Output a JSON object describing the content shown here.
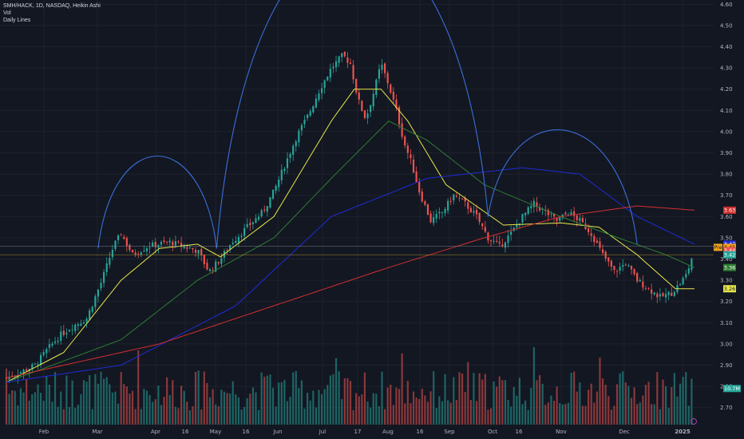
{
  "legend": {
    "line1": "SMH/HACK, 1D, NASDAQ, Heikin Ashi",
    "line2": "Vol",
    "line3": "Daily Lines"
  },
  "chart_data": {
    "type": "candlestick",
    "ylim": [
      2.62,
      4.62
    ],
    "y_ticks": [
      4.6,
      4.5,
      4.4,
      4.3,
      4.2,
      4.1,
      4.0,
      3.9,
      3.8,
      3.7,
      3.6,
      3.5,
      3.4,
      3.3,
      3.2,
      3.1,
      3.0,
      2.9,
      2.8,
      2.7
    ],
    "x_ticks": [
      "Feb",
      "Mar",
      "Apr",
      "16",
      "May",
      "16",
      "Jun",
      "Jul",
      "17",
      "Aug",
      "16",
      "Sep",
      "Oct",
      "16",
      "Nov",
      "Dec",
      "2025"
    ],
    "bar_count": 240,
    "close_path": [
      [
        0,
        2.84
      ],
      [
        8,
        2.87
      ],
      [
        15,
        2.9
      ],
      [
        22,
        2.98
      ],
      [
        28,
        3.04
      ],
      [
        34,
        3.08
      ],
      [
        42,
        3.12
      ],
      [
        50,
        3.3
      ],
      [
        56,
        3.46
      ],
      [
        60,
        3.52
      ],
      [
        66,
        3.42
      ],
      [
        74,
        3.46
      ],
      [
        80,
        3.47
      ],
      [
        86,
        3.48
      ],
      [
        92,
        3.46
      ],
      [
        100,
        3.44
      ],
      [
        106,
        3.34
      ],
      [
        112,
        3.4
      ],
      [
        118,
        3.48
      ],
      [
        126,
        3.55
      ],
      [
        134,
        3.62
      ],
      [
        140,
        3.72
      ],
      [
        146,
        3.85
      ],
      [
        152,
        3.98
      ],
      [
        158,
        4.08
      ],
      [
        164,
        4.2
      ],
      [
        170,
        4.3
      ],
      [
        176,
        4.36
      ],
      [
        180,
        4.32
      ],
      [
        184,
        4.15
      ],
      [
        188,
        4.06
      ],
      [
        192,
        4.18
      ],
      [
        196,
        4.32
      ],
      [
        200,
        4.22
      ],
      [
        204,
        4.1
      ],
      [
        208,
        3.95
      ],
      [
        212,
        3.85
      ],
      [
        216,
        3.72
      ],
      [
        222,
        3.58
      ],
      [
        228,
        3.62
      ],
      [
        234,
        3.7
      ],
      [
        240,
        3.66
      ],
      [
        246,
        3.6
      ],
      [
        252,
        3.5
      ],
      [
        258,
        3.46
      ],
      [
        264,
        3.52
      ],
      [
        270,
        3.6
      ],
      [
        276,
        3.66
      ],
      [
        282,
        3.62
      ],
      [
        288,
        3.58
      ],
      [
        294,
        3.62
      ],
      [
        300,
        3.58
      ],
      [
        306,
        3.52
      ],
      [
        312,
        3.42
      ],
      [
        318,
        3.34
      ],
      [
        324,
        3.38
      ],
      [
        330,
        3.3
      ],
      [
        336,
        3.26
      ],
      [
        342,
        3.22
      ],
      [
        348,
        3.24
      ],
      [
        352,
        3.28
      ],
      [
        356,
        3.33
      ],
      [
        360,
        3.45
      ]
    ],
    "series": [
      {
        "name": "",
        "color": "#e8e84a",
        "values_at": [
          [
            0,
            2.82
          ],
          [
            30,
            2.96
          ],
          [
            60,
            3.3
          ],
          [
            80,
            3.45
          ],
          [
            100,
            3.47
          ],
          [
            112,
            3.41
          ],
          [
            140,
            3.6
          ],
          [
            170,
            4.05
          ],
          [
            182,
            4.2
          ],
          [
            196,
            4.2
          ],
          [
            210,
            4.05
          ],
          [
            230,
            3.75
          ],
          [
            260,
            3.56
          ],
          [
            290,
            3.57
          ],
          [
            310,
            3.55
          ],
          [
            330,
            3.42
          ],
          [
            350,
            3.26
          ],
          [
            360,
            3.26
          ]
        ]
      },
      {
        "name": "",
        "color": "#2e7d32",
        "values_at": [
          [
            0,
            2.82
          ],
          [
            60,
            3.02
          ],
          [
            100,
            3.3
          ],
          [
            140,
            3.5
          ],
          [
            170,
            3.78
          ],
          [
            200,
            4.05
          ],
          [
            220,
            3.96
          ],
          [
            250,
            3.75
          ],
          [
            290,
            3.6
          ],
          [
            320,
            3.5
          ],
          [
            345,
            3.42
          ],
          [
            360,
            3.36
          ]
        ]
      },
      {
        "name": "",
        "color": "#1e2bd6",
        "values_at": [
          [
            0,
            2.82
          ],
          [
            60,
            2.9
          ],
          [
            120,
            3.18
          ],
          [
            170,
            3.6
          ],
          [
            220,
            3.78
          ],
          [
            270,
            3.83
          ],
          [
            300,
            3.8
          ],
          [
            330,
            3.6
          ],
          [
            360,
            3.47
          ]
        ]
      },
      {
        "name": "",
        "color": "#d32f2f",
        "values_at": [
          [
            0,
            2.84
          ],
          [
            80,
            3.0
          ],
          [
            140,
            3.18
          ],
          [
            200,
            3.36
          ],
          [
            250,
            3.5
          ],
          [
            290,
            3.6
          ],
          [
            330,
            3.65
          ],
          [
            360,
            3.63
          ]
        ]
      }
    ],
    "arcs": [
      {
        "color": "#3b6fd8",
        "from": [
          48,
          3.45
        ],
        "to": [
          110,
          3.45
        ],
        "peak": 3.74
      },
      {
        "color": "#3b6fd8",
        "from": [
          110,
          3.45
        ],
        "to": [
          252,
          3.6
        ],
        "peak": 4.44
      },
      {
        "color": "#3b6fd8",
        "from": [
          252,
          3.6
        ],
        "to": [
          330,
          3.47
        ],
        "peak": 3.85
      }
    ],
    "horizontal_lines": [
      {
        "value": 3.46,
        "color": "#8a8d96"
      },
      {
        "value": 3.42,
        "color": "#c9a227"
      }
    ],
    "price_tags": [
      {
        "label": "3.63",
        "value": 3.63,
        "bg": "#d32f2f",
        "fg": "#ffffff"
      },
      {
        "label": "3.47",
        "value": 3.47,
        "bg": "#1e2bd6",
        "fg": "#ffffff"
      },
      {
        "label": "3.45",
        "value": 3.455,
        "bg": "#f0a21b",
        "fg": "#131722",
        "prefix": "Pre"
      },
      {
        "label": "3.44",
        "value": 3.44,
        "bg": "#ef5350",
        "fg": "#ffffff"
      },
      {
        "label": "3.42",
        "value": 3.42,
        "bg": "#26a69a",
        "fg": "#ffffff"
      },
      {
        "label": "3.36",
        "value": 3.36,
        "bg": "#2e7d32",
        "fg": "#ffffff"
      },
      {
        "label": "3.26",
        "value": 3.26,
        "bg": "#e8e84a",
        "fg": "#131722"
      },
      {
        "label": "10.7M",
        "value": 2.79,
        "bg": "#26a69a",
        "fg": "#ffffff"
      }
    ],
    "colors": {
      "up": "#26a69a",
      "down": "#ef5350",
      "background": "#131722",
      "grid": "#1e222d"
    }
  }
}
